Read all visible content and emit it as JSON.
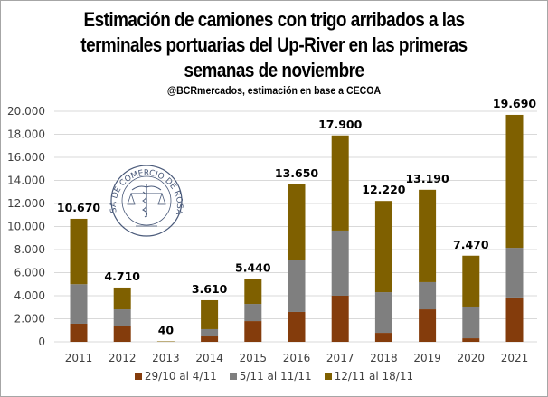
{
  "chart_data": {
    "type": "bar",
    "stacked": true,
    "title_lines": [
      "Estimación de camiones con trigo arribados a las",
      "terminales portuarias del Up-River en las primeras",
      "semanas de noviembre"
    ],
    "subtitle": "@BCRmercados,  estimación en base a CECOA",
    "categories": [
      "2011",
      "2012",
      "2013",
      "2014",
      "2015",
      "2016",
      "2017",
      "2018",
      "2019",
      "2020",
      "2021"
    ],
    "series": [
      {
        "name": "29/10 al 4/11",
        "color": "#843C0C",
        "values": [
          1570,
          1410,
          0,
          470,
          1800,
          2590,
          4000,
          780,
          2820,
          310,
          3850
        ]
      },
      {
        "name": "5/11 al 11/11",
        "color": "#7F7F7F",
        "values": [
          3430,
          1410,
          0,
          630,
          1490,
          4470,
          5650,
          3530,
          2360,
          2750,
          4300
        ]
      },
      {
        "name": "12/11 al 18/11",
        "color": "#7F6000",
        "values": [
          5670,
          1890,
          40,
          2510,
          2150,
          6590,
          8250,
          7910,
          8010,
          4410,
          11540
        ]
      }
    ],
    "totals": [
      10670,
      4710,
      40,
      3610,
      5440,
      13650,
      17900,
      12220,
      13190,
      7470,
      19690
    ],
    "total_labels": [
      "10.670",
      "4.710",
      "40",
      "3.610",
      "5.440",
      "13.650",
      "17.900",
      "12.220",
      "13.190",
      "7.470",
      "19.690"
    ],
    "ylim": [
      0,
      20000
    ],
    "yticks": [
      0,
      2000,
      4000,
      6000,
      8000,
      10000,
      12000,
      14000,
      16000,
      18000,
      20000
    ],
    "ytick_labels": [
      "0",
      "2.000",
      "4.000",
      "6.000",
      "8.000",
      "10.000",
      "12.000",
      "14.000",
      "16.000",
      "18.000",
      "20.000"
    ],
    "xlabel": "",
    "ylabel": "",
    "grid": true,
    "legend_position": "bottom",
    "watermark": "BOLSA DE COMERCIO DE ROSARIO"
  }
}
